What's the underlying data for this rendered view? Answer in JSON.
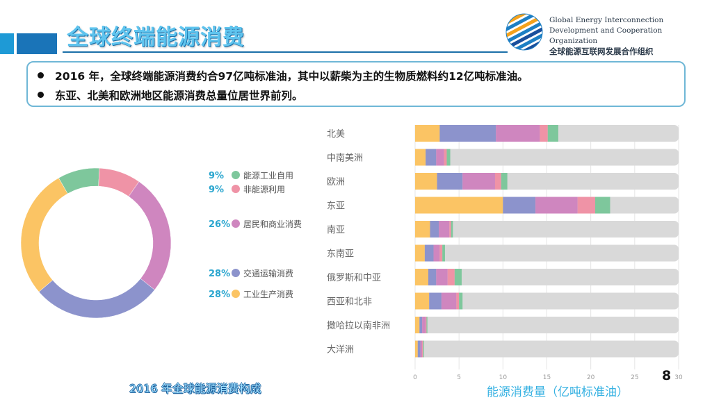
{
  "header": {
    "title": "全球终端能源消费",
    "logo": {
      "line1": "Global Energy Interconnection",
      "line2": "Development and Cooperation Organization",
      "line3": "全球能源互联网发展合作组织"
    }
  },
  "bullets": [
    "2016 年，全球终端能源消费约合97亿吨标准油，其中以薪柴为主的生物质燃料约12亿吨标准油。",
    "东亚、北美和欧洲地区能源消费总量位居世界前列。"
  ],
  "page_number": "8",
  "donut_caption": "2016 年全球能源消费构成",
  "bar_axis_caption": "能源消费量（亿吨标准油）",
  "colors": {
    "energy_industry": "#7ec79c",
    "new_energy": "#ef93a6",
    "residential_commercial": "#cf86bf",
    "transport": "#8c93cc",
    "industrial": "#fbc464",
    "track": "#d9d9d9"
  },
  "chart_data": [
    {
      "type": "pie",
      "variant": "donut",
      "slices": [
        {
          "label": "能源工业自用",
          "value_label": "9%",
          "value": 9,
          "color": "#7ec79c"
        },
        {
          "label": "非能源利用",
          "value_label": "9%",
          "value": 9,
          "color": "#ef93a6"
        },
        {
          "label": "居民和商业消费",
          "value_label": "26%",
          "value": 26,
          "color": "#cf86bf"
        },
        {
          "label": "交通运输消费",
          "value_label": "28%",
          "value": 28,
          "color": "#8c93cc"
        },
        {
          "label": "工业生产消费",
          "value_label": "28%",
          "value": 28,
          "color": "#fbc464"
        }
      ]
    },
    {
      "type": "bar",
      "orientation": "horizontal",
      "stacked": true,
      "categories": [
        "北美",
        "中南美洲",
        "欧洲",
        "东亚",
        "南亚",
        "东南亚",
        "俄罗斯和中亚",
        "西亚和北非",
        "撒哈拉以南非洲",
        "大洋洲"
      ],
      "series": [
        {
          "key": "industrial",
          "values": [
            2.8,
            1.2,
            2.5,
            10.0,
            1.7,
            1.1,
            1.5,
            1.6,
            0.5,
            0.3
          ]
        },
        {
          "key": "transport",
          "values": [
            6.4,
            1.2,
            2.9,
            3.7,
            1.0,
            1.0,
            0.9,
            1.4,
            0.3,
            0.3
          ]
        },
        {
          "key": "residential_commercial",
          "values": [
            5.0,
            0.9,
            3.7,
            4.8,
            1.2,
            0.7,
            1.3,
            1.7,
            0.4,
            0.2
          ]
        },
        {
          "key": "new_energy",
          "values": [
            0.9,
            0.3,
            0.7,
            2.0,
            0.2,
            0.3,
            0.8,
            0.3,
            0.1,
            0.1
          ]
        },
        {
          "key": "energy_industry",
          "values": [
            1.2,
            0.4,
            0.7,
            1.7,
            0.2,
            0.3,
            0.8,
            0.4,
            0.1,
            0.1
          ]
        }
      ],
      "xticks": [
        "0",
        "5",
        "10",
        "15",
        "20",
        "25",
        "30"
      ],
      "xlim": [
        0,
        30
      ],
      "xlabel": "能源消费量（亿吨标准油）"
    }
  ]
}
